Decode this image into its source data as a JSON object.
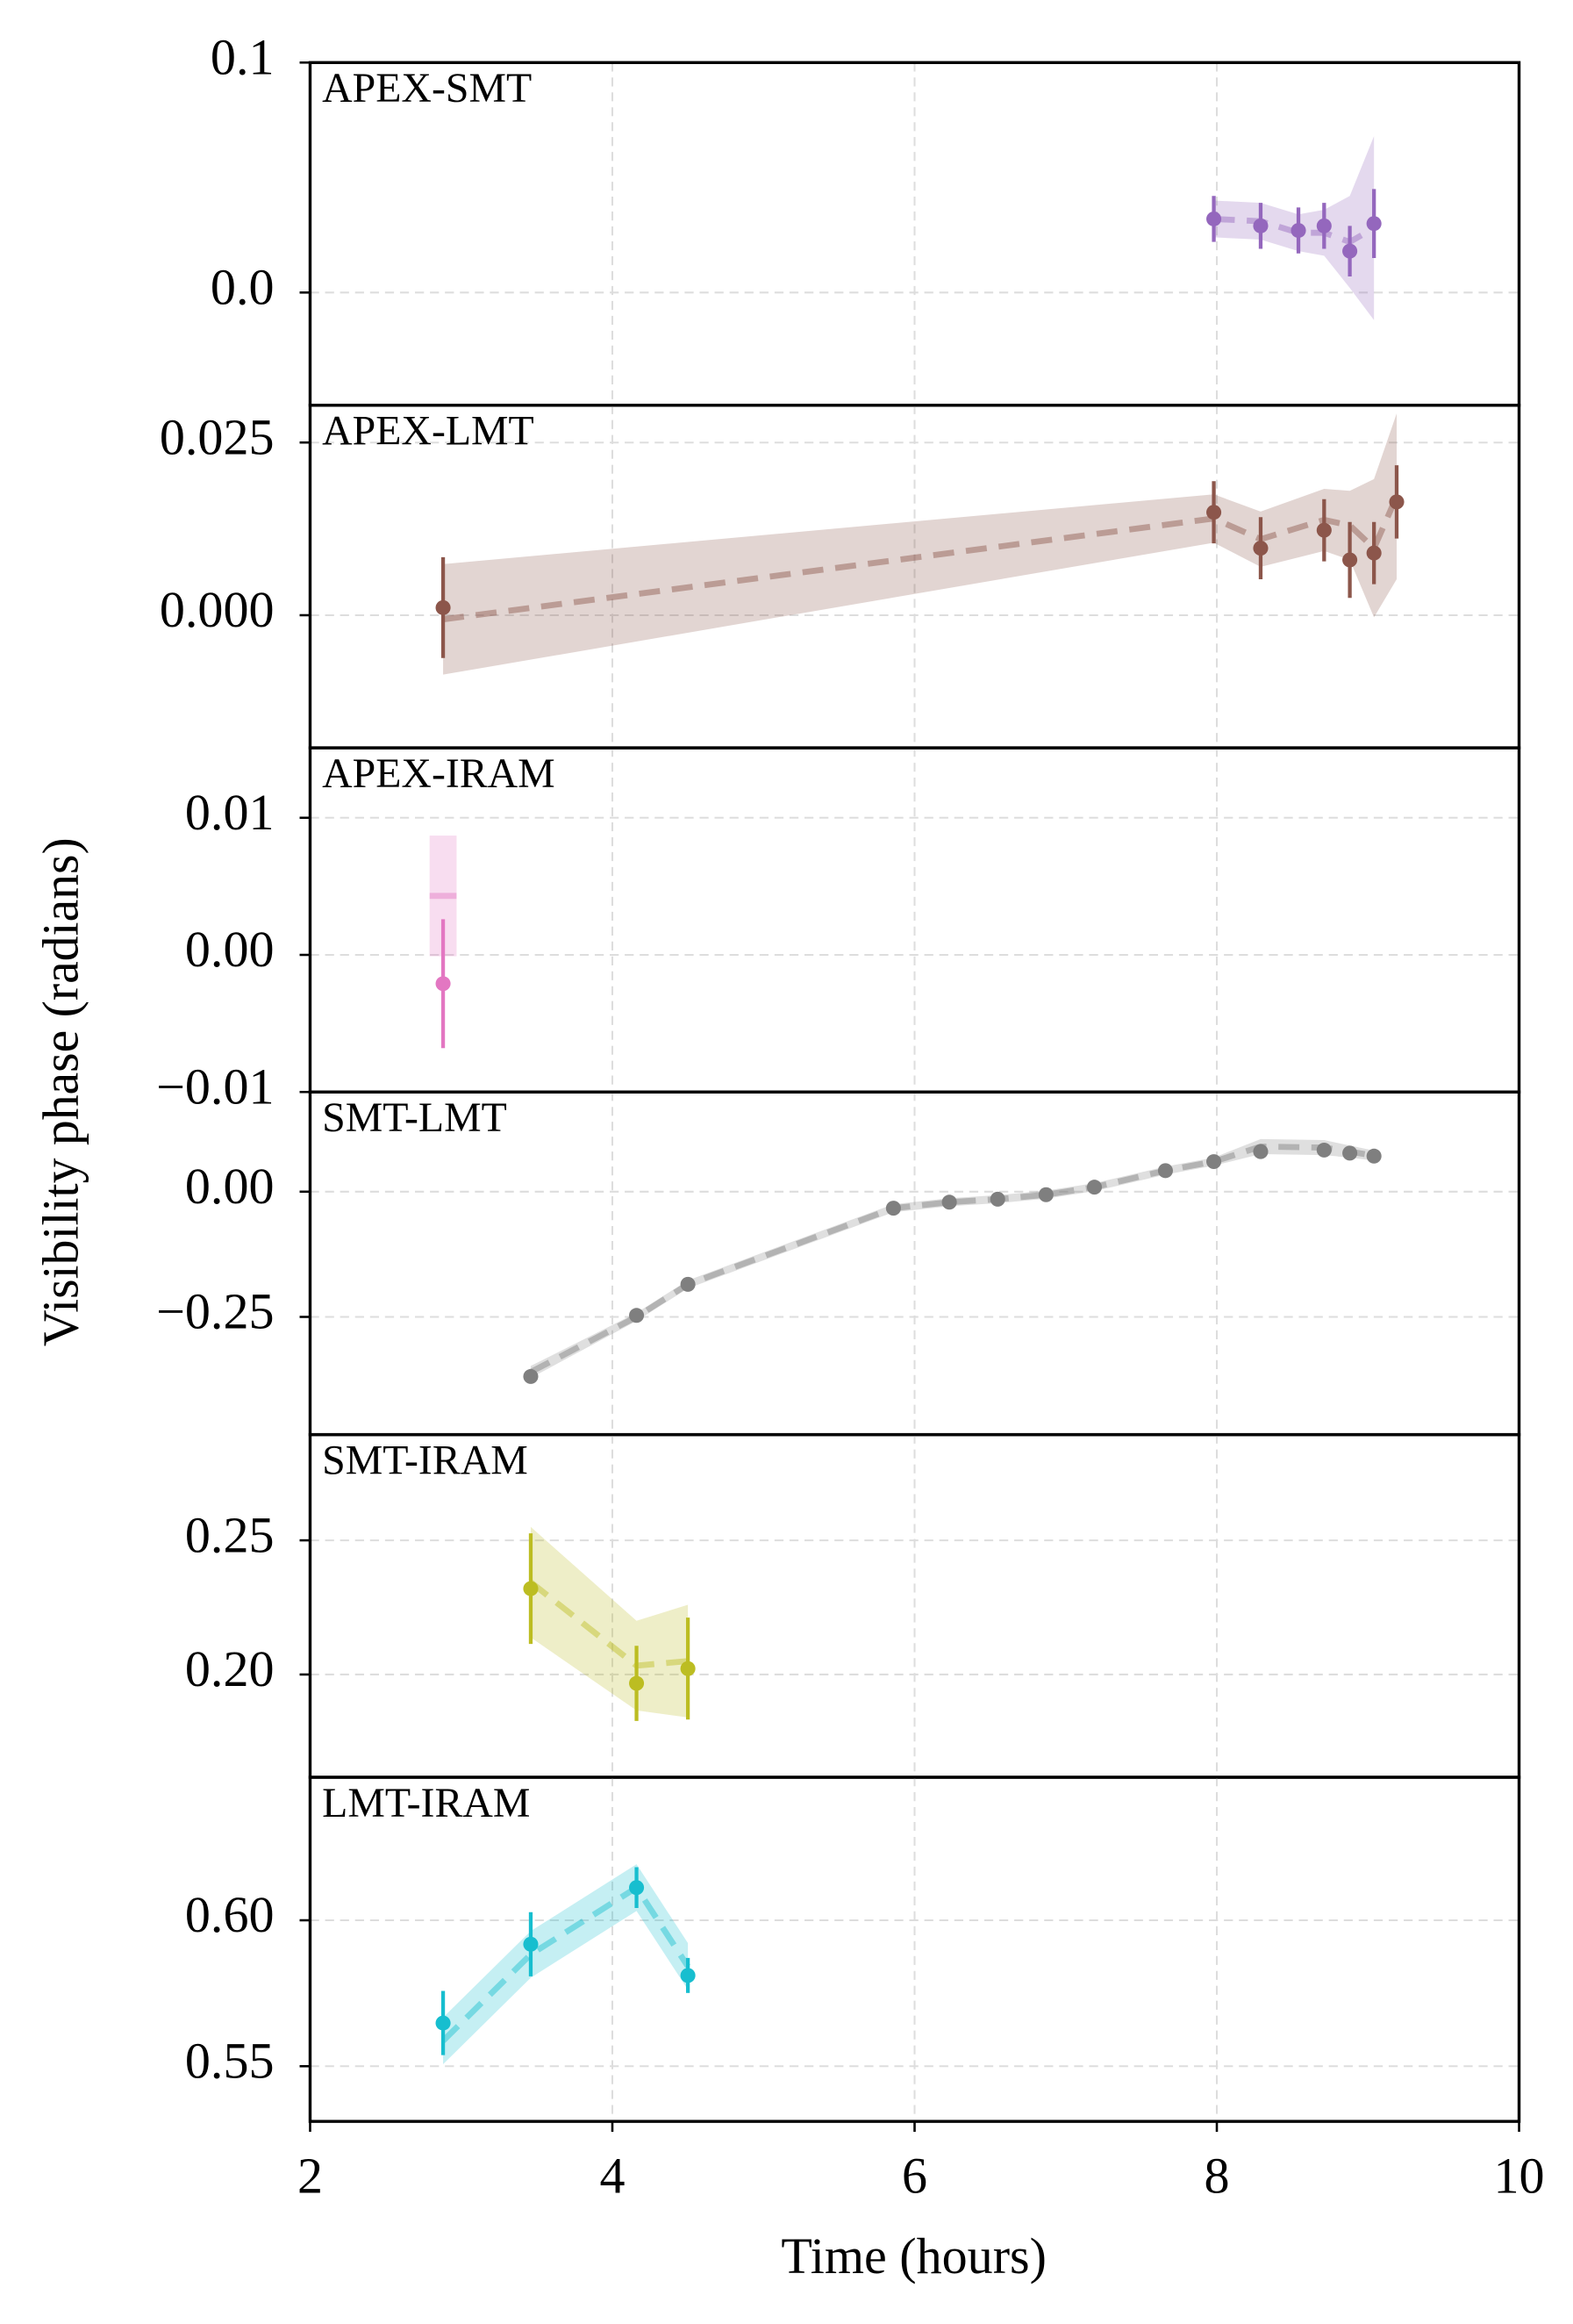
{
  "chart_data": [
    {
      "type": "errorbar",
      "title": "APEX-SMT",
      "ylabel": "Visibility phase (radians)",
      "color": "#9467bd",
      "x": [
        7.98,
        8.29,
        8.54,
        8.71,
        8.88,
        9.04
      ],
      "values": [
        0.032,
        0.029,
        0.027,
        0.029,
        0.018,
        0.03
      ],
      "errors": [
        0.01,
        0.01,
        0.01,
        0.01,
        0.011,
        0.015
      ],
      "model": [
        0.032,
        0.031,
        0.026,
        0.026,
        0.022,
        0.028
      ],
      "model_err": [
        0.008,
        0.008,
        0.008,
        0.01,
        0.02,
        0.04
      ],
      "ylim": [
        -0.049,
        0.1
      ],
      "yticks": [
        {
          "value": 0,
          "label": "0.0"
        },
        {
          "value": 0.1,
          "label": "0.1"
        }
      ],
      "grid": true
    },
    {
      "type": "errorbar",
      "title": "APEX-LMT",
      "color": "#8c564b",
      "x": [
        2.88,
        7.98,
        8.29,
        8.71,
        8.88,
        9.04,
        9.19
      ],
      "values": [
        0.0011,
        0.0149,
        0.0097,
        0.0123,
        0.008,
        0.009,
        0.0164
      ],
      "errors": [
        0.0073,
        0.0045,
        0.0045,
        0.0045,
        0.0055,
        0.0045,
        0.0053
      ],
      "model": [
        -0.0006,
        0.014,
        0.011,
        0.0138,
        0.013,
        0.0097,
        0.0172
      ],
      "model_err": [
        0.008,
        0.0035,
        0.004,
        0.0045,
        0.005,
        0.01,
        0.012
      ],
      "ylim": [
        -0.0192,
        0.0304
      ],
      "yticks": [
        {
          "value": 0,
          "label": "0.000"
        },
        {
          "value": 0.025,
          "label": "0.025"
        }
      ],
      "grid": true
    },
    {
      "type": "errorbar",
      "title": "APEX-IRAM",
      "color": "#e377c2",
      "x": [
        2.88
      ],
      "values": [
        -0.0021
      ],
      "errors": [
        0.0047
      ],
      "model": [
        0.0043
      ],
      "model_err": [
        0.0044
      ],
      "ylim": [
        -0.01,
        0.0151
      ],
      "yticks": [
        {
          "value": -0.01,
          "label": "−0.01"
        },
        {
          "value": 0,
          "label": "0.00"
        },
        {
          "value": 0.01,
          "label": "0.01"
        }
      ],
      "grid": true
    },
    {
      "type": "errorbar",
      "title": "SMT-LMT",
      "color": "#7f7f7f",
      "x": [
        3.46,
        4.16,
        4.5,
        5.86,
        6.23,
        6.55,
        6.87,
        7.19,
        7.66,
        7.98,
        8.29,
        8.71,
        8.88,
        9.04
      ],
      "values": [
        -0.369,
        -0.247,
        -0.185,
        -0.033,
        -0.021,
        -0.015,
        -0.006,
        0.009,
        0.042,
        0.06,
        0.08,
        0.083,
        0.077,
        0.071
      ],
      "errors": [
        0.008,
        0.008,
        0.008,
        0.008,
        0.008,
        0.008,
        0.008,
        0.008,
        0.008,
        0.008,
        0.008,
        0.008,
        0.008,
        0.008
      ],
      "model": [
        -0.36,
        -0.25,
        -0.185,
        -0.033,
        -0.021,
        -0.015,
        -0.006,
        0.009,
        0.042,
        0.06,
        0.09,
        0.088,
        0.08,
        0.072
      ],
      "model_err": [
        0.012,
        0.008,
        0.008,
        0.008,
        0.008,
        0.008,
        0.008,
        0.008,
        0.008,
        0.008,
        0.015,
        0.015,
        0.012,
        0.01
      ],
      "ylim": [
        -0.485,
        0.199
      ],
      "yticks": [
        {
          "value": -0.25,
          "label": "−0.25"
        },
        {
          "value": 0,
          "label": "0.00"
        }
      ],
      "grid": true
    },
    {
      "type": "errorbar",
      "title": "SMT-IRAM",
      "color": "#bcbd22",
      "x": [
        3.46,
        4.16,
        4.5
      ],
      "values": [
        0.232,
        0.1967,
        0.2022
      ],
      "errors": [
        0.0206,
        0.014,
        0.019
      ],
      "model": [
        0.2344,
        0.2033,
        0.205
      ],
      "model_err": [
        0.0206,
        0.0167,
        0.021
      ],
      "ylim": [
        0.1617,
        0.2894
      ],
      "yticks": [
        {
          "value": 0.2,
          "label": "0.20"
        },
        0.25
      ],
      "grid": true
    },
    {
      "type": "errorbar",
      "title": "LMT-IRAM",
      "color": "#17becf",
      "x": [
        2.88,
        3.46,
        4.16,
        4.5
      ],
      "values": [
        0.5648,
        0.5918,
        0.6112,
        0.5811
      ],
      "errors": [
        0.011,
        0.011,
        0.007,
        0.006
      ],
      "model": [
        0.5587,
        0.5883,
        0.6112,
        0.5842
      ],
      "model_err": [
        0.008,
        0.008,
        0.008,
        0.008
      ],
      "ylim": [
        0.5311,
        0.649
      ],
      "yticks": [
        0.55,
        {
          "value": 0.6,
          "label": "0.60"
        }
      ],
      "grid": true,
      "xlabel": "Time (hours)",
      "xlim": [
        2,
        10
      ],
      "xticks": [
        2,
        4,
        6,
        8,
        10
      ]
    }
  ]
}
